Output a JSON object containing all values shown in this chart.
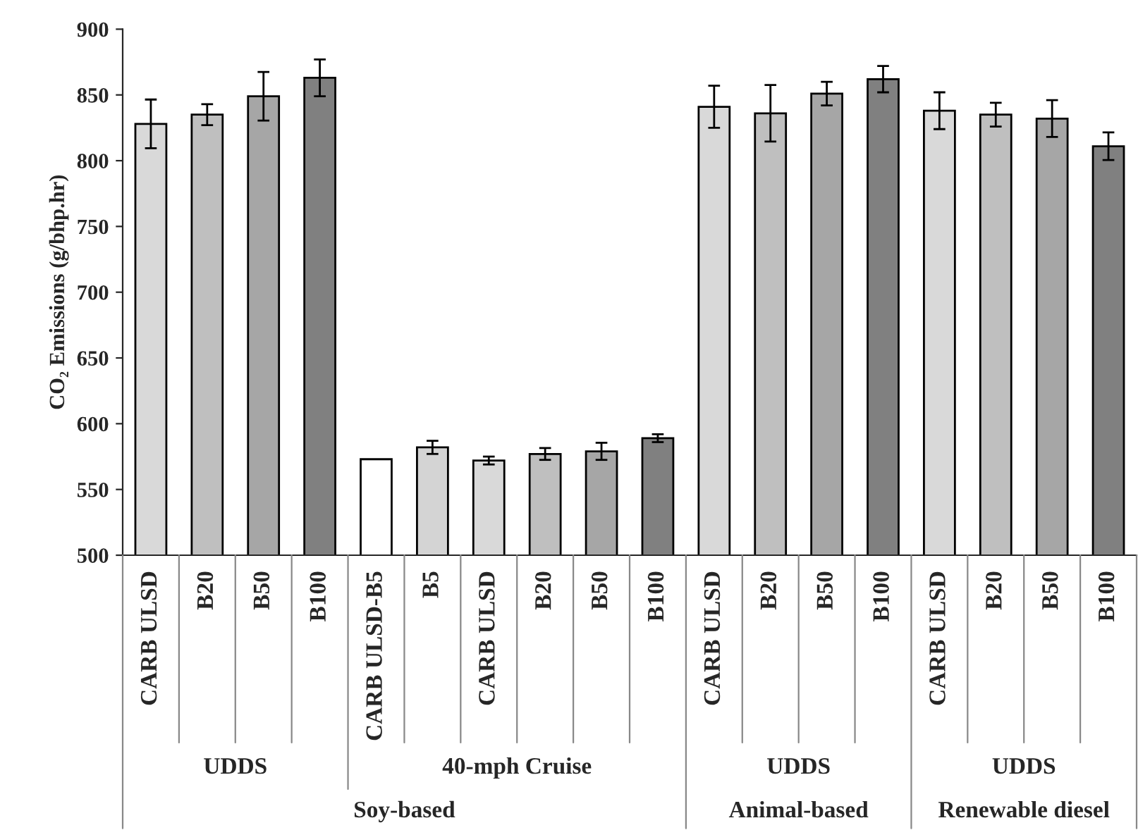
{
  "chart_data": {
    "type": "bar",
    "ylabel": "CO₂ Emissions (g/bhp.hr)",
    "categories": [
      "CARB ULSD",
      "B20",
      "B50",
      "B100",
      "CARB ULSD-B5",
      "B5",
      "CARB ULSD",
      "B20",
      "B50",
      "B100",
      "CARB ULSD",
      "B20",
      "B50",
      "B100",
      "CARB ULSD",
      "B20",
      "B50",
      "B100"
    ],
    "values": [
      828,
      835,
      849,
      863,
      573,
      582,
      572,
      577,
      579,
      589,
      841,
      836,
      851,
      862,
      838,
      835,
      832,
      811
    ],
    "errors": [
      18.5,
      8,
      18.5,
      14,
      null,
      5,
      3,
      4.5,
      6.5,
      3,
      16,
      21.5,
      9,
      10,
      14,
      9,
      14,
      10.5
    ],
    "colors": [
      "#d9d9d9",
      "#bfbfbf",
      "#a6a6a6",
      "#808080",
      "#ffffff",
      "#d4d4d4",
      "#d9d9d9",
      "#bfbfbf",
      "#a6a6a6",
      "#808080",
      "#d9d9d9",
      "#bfbfbf",
      "#a6a6a6",
      "#808080",
      "#d9d9d9",
      "#bfbfbf",
      "#a6a6a6",
      "#808080"
    ],
    "ylim": [
      500,
      900
    ],
    "yticks": [
      500,
      550,
      600,
      650,
      700,
      750,
      800,
      850,
      900
    ],
    "grid": false,
    "legend": false,
    "annotations": [
      "UDDS",
      "40-mph Cruise",
      "UDDS",
      "UDDS",
      "Soy-based",
      "Animal-based",
      "Renewable diesel"
    ]
  }
}
